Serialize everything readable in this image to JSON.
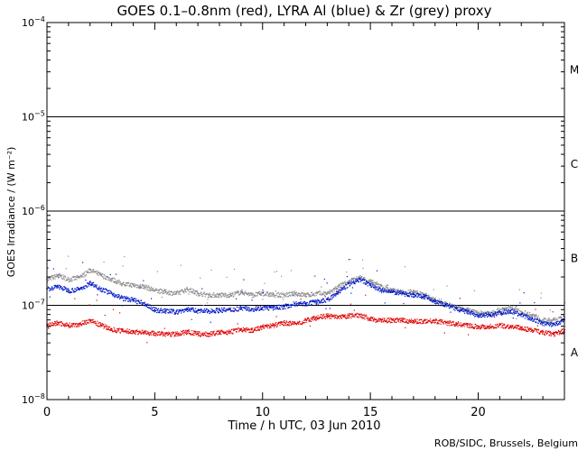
{
  "chart_data": {
    "type": "scatter",
    "title": "GOES 0.1–0.8nm (red), LYRA Al (blue) & Zr (grey) proxy",
    "xlabel": "Time / h UTC, 03 Jun 2010",
    "ylabel": "GOES Irradiance / (W m⁻²)",
    "credit": "ROB/SIDC, Brussels, Belgium",
    "xlim": [
      0,
      24
    ],
    "ylim": [
      1e-08,
      0.0001
    ],
    "yscale": "log",
    "x_ticks": [
      0,
      5,
      10,
      15,
      20
    ],
    "y_ticks": [
      {
        "value": 1e-08,
        "base": "10",
        "exp": "−8"
      },
      {
        "value": 1e-07,
        "base": "10",
        "exp": "−7"
      },
      {
        "value": 1e-06,
        "base": "10",
        "exp": "−6"
      },
      {
        "value": 1e-05,
        "base": "10",
        "exp": "−5"
      },
      {
        "value": 0.0001,
        "base": "10",
        "exp": "−4"
      }
    ],
    "flare_classes": [
      {
        "label": "A",
        "center": 3.16e-08
      },
      {
        "label": "B",
        "center": 3.16e-07
      },
      {
        "label": "C",
        "center": 3.16e-06
      },
      {
        "label": "M",
        "center": 3.16e-05
      }
    ],
    "hlines": [
      1e-07,
      1e-06,
      1e-05
    ],
    "series": [
      {
        "name": "LYRA Zr proxy (grey)",
        "color": "#8c8c8c",
        "x": [
          0,
          0.5,
          1,
          1.5,
          2,
          2.5,
          3,
          3.5,
          4,
          4.5,
          5,
          5.5,
          6,
          6.5,
          7,
          7.5,
          8,
          8.5,
          9,
          9.5,
          10,
          10.5,
          11,
          11.5,
          12,
          12.5,
          13,
          13.5,
          14,
          14.5,
          15,
          15.5,
          16,
          16.5,
          17,
          17.5,
          18,
          18.5,
          19,
          19.5,
          20,
          20.5,
          21,
          21.5,
          22,
          22.5,
          23,
          23.5,
          24
        ],
        "y": [
          1.9e-07,
          2.1e-07,
          1.9e-07,
          2e-07,
          2.4e-07,
          2.1e-07,
          1.9e-07,
          1.7e-07,
          1.65e-07,
          1.6e-07,
          1.45e-07,
          1.4e-07,
          1.35e-07,
          1.5e-07,
          1.35e-07,
          1.3e-07,
          1.3e-07,
          1.3e-07,
          1.4e-07,
          1.3e-07,
          1.35e-07,
          1.3e-07,
          1.3e-07,
          1.35e-07,
          1.3e-07,
          1.35e-07,
          1.35e-07,
          1.6e-07,
          1.8e-07,
          2e-07,
          1.8e-07,
          1.6e-07,
          1.45e-07,
          1.4e-07,
          1.4e-07,
          1.3e-07,
          1.15e-07,
          1.05e-07,
          9.5e-08,
          9e-08,
          8.3e-08,
          8.5e-08,
          9e-08,
          9.5e-08,
          8.5e-08,
          8e-08,
          7e-08,
          7e-08,
          7.5e-08
        ]
      },
      {
        "name": "LYRA Al proxy (blue)",
        "color": "#0018c8",
        "x": [
          0,
          0.5,
          1,
          1.5,
          2,
          2.5,
          3,
          3.5,
          4,
          4.5,
          5,
          5.5,
          6,
          6.5,
          7,
          7.5,
          8,
          8.5,
          9,
          9.5,
          10,
          10.5,
          11,
          11.5,
          12,
          12.5,
          13,
          13.5,
          14,
          14.5,
          15,
          15.5,
          16,
          16.5,
          17,
          17.5,
          18,
          18.5,
          19,
          19.5,
          20,
          20.5,
          21,
          21.5,
          22,
          22.5,
          23,
          23.5,
          24
        ],
        "y": [
          1.5e-07,
          1.6e-07,
          1.45e-07,
          1.5e-07,
          1.75e-07,
          1.5e-07,
          1.35e-07,
          1.2e-07,
          1.15e-07,
          1.05e-07,
          9e-08,
          8.8e-08,
          8.6e-08,
          9.2e-08,
          8.8e-08,
          8.8e-08,
          9e-08,
          9e-08,
          9.5e-08,
          9.2e-08,
          9.5e-08,
          9.5e-08,
          9.8e-08,
          1.05e-07,
          1.05e-07,
          1.1e-07,
          1.15e-07,
          1.4e-07,
          1.7e-07,
          1.9e-07,
          1.65e-07,
          1.45e-07,
          1.4e-07,
          1.35e-07,
          1.3e-07,
          1.25e-07,
          1.1e-07,
          1.02e-07,
          9.2e-08,
          8.6e-08,
          7.8e-08,
          8e-08,
          8.5e-08,
          8.8e-08,
          8e-08,
          7.2e-08,
          6.5e-08,
          6.3e-08,
          7e-08
        ]
      },
      {
        "name": "GOES 0.1–0.8nm (red)",
        "color": "#e00000",
        "x": [
          0,
          0.5,
          1,
          1.5,
          2,
          2.5,
          3,
          3.5,
          4,
          4.5,
          5,
          5.5,
          6,
          6.5,
          7,
          7.5,
          8,
          8.5,
          9,
          9.5,
          10,
          10.5,
          11,
          11.5,
          12,
          12.5,
          13,
          13.5,
          14,
          14.5,
          15,
          15.5,
          16,
          16.5,
          17,
          17.5,
          18,
          18.5,
          19,
          19.5,
          20,
          20.5,
          21,
          21.5,
          22,
          22.5,
          23,
          23.5,
          24
        ],
        "y": [
          6.2e-08,
          6.6e-08,
          6.2e-08,
          6.4e-08,
          7e-08,
          6.2e-08,
          5.6e-08,
          5.4e-08,
          5.3e-08,
          5.2e-08,
          5.1e-08,
          5e-08,
          5e-08,
          5.3e-08,
          5e-08,
          5e-08,
          5.2e-08,
          5.3e-08,
          5.6e-08,
          5.5e-08,
          6e-08,
          6.2e-08,
          6.6e-08,
          6.4e-08,
          7e-08,
          7.5e-08,
          7.8e-08,
          7.5e-08,
          7.8e-08,
          8e-08,
          7.2e-08,
          7e-08,
          7e-08,
          7e-08,
          6.8e-08,
          6.9e-08,
          6.9e-08,
          6.6e-08,
          6.4e-08,
          6.2e-08,
          6e-08,
          6e-08,
          6.2e-08,
          6e-08,
          5.8e-08,
          5.5e-08,
          5.2e-08,
          5e-08,
          5.5e-08
        ]
      }
    ]
  }
}
